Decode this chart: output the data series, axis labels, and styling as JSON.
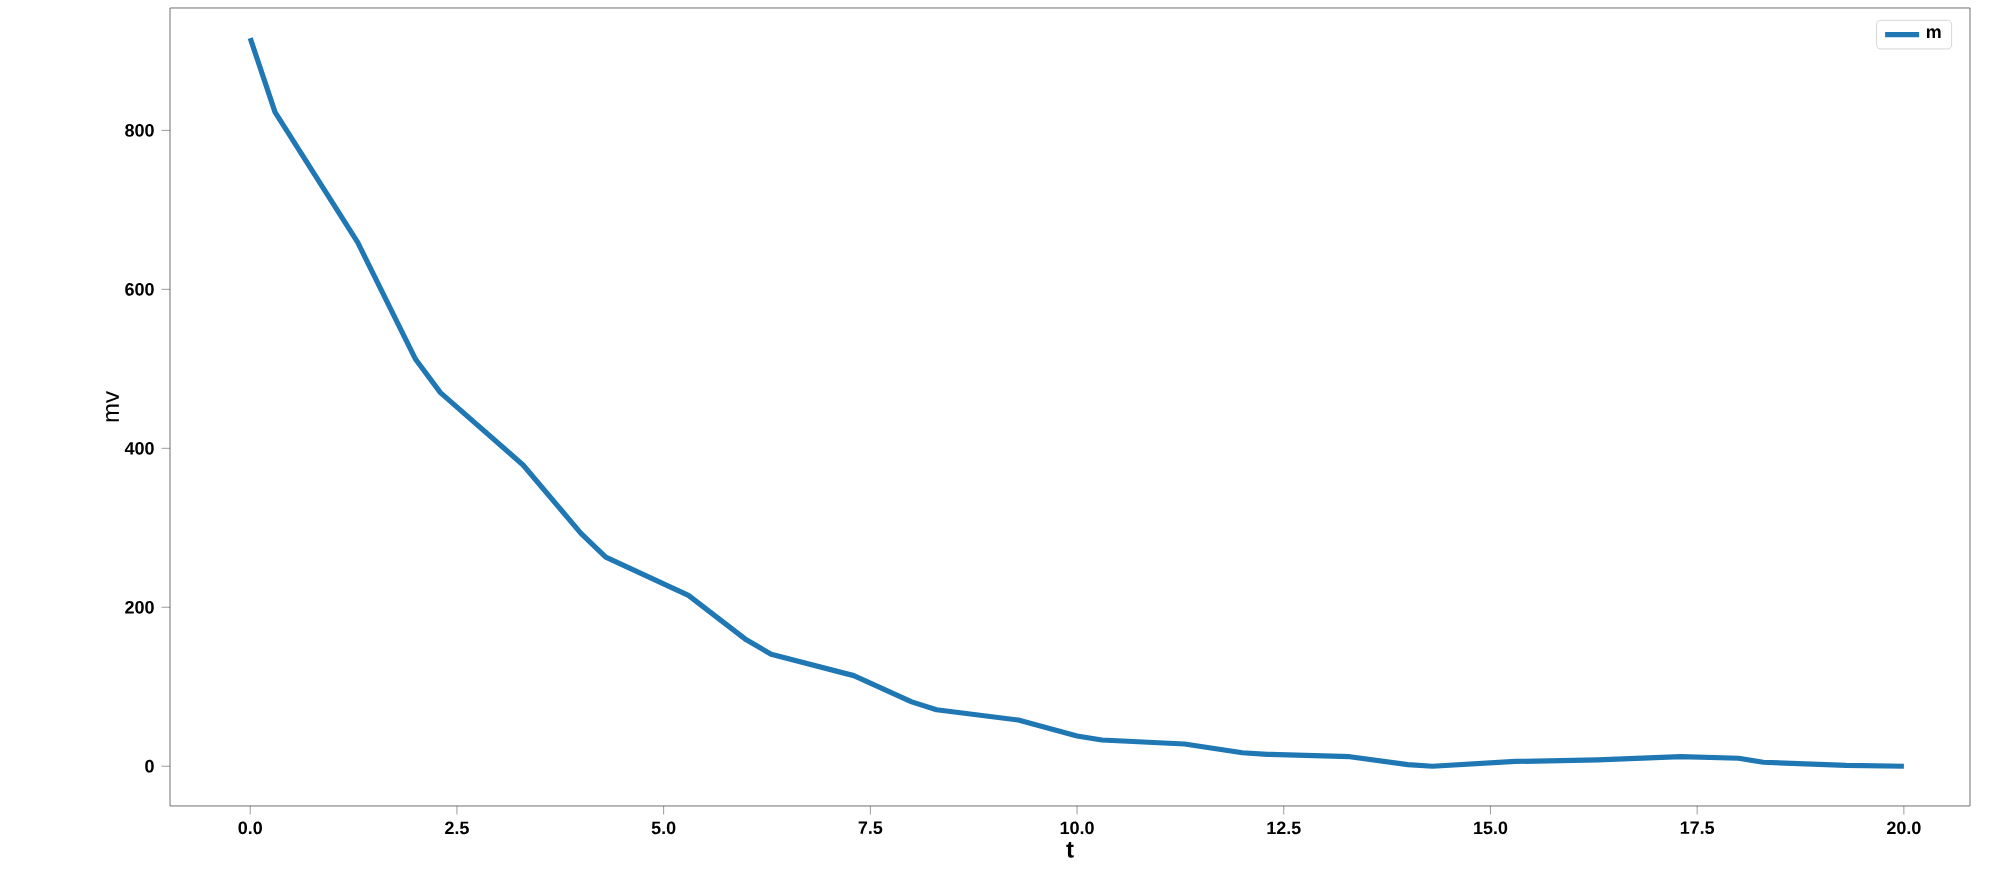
{
  "chart_data": {
    "type": "line",
    "xlabel": "t",
    "ylabel": "mv",
    "x": [
      0,
      0.3,
      1.3,
      2.0,
      2.3,
      3.3,
      4.0,
      4.3,
      5.3,
      6.0,
      6.3,
      7.3,
      8.0,
      8.3,
      9.3,
      10.0,
      10.3,
      11.3,
      12.0,
      12.3,
      13.3,
      14.0,
      14.3,
      15.3,
      16.3,
      17.3,
      18.0,
      18.3,
      19.3,
      20.0
    ],
    "series": [
      {
        "name": "m",
        "color": "#1f77b4",
        "values": [
          916,
          823,
          659,
          512,
          470,
          379,
          293,
          263,
          215,
          159,
          141,
          114,
          81,
          71,
          58,
          38,
          33,
          28,
          17,
          15,
          12,
          2,
          0,
          6,
          8,
          12,
          10,
          5,
          1,
          0
        ]
      }
    ],
    "xlim": [
      -0.97,
      20.8
    ],
    "ylim": [
      -50,
      954
    ],
    "xticks": [
      {
        "value": 0,
        "label": "0.0"
      },
      {
        "value": 2.5,
        "label": "2.5"
      },
      {
        "value": 5,
        "label": "5.0"
      },
      {
        "value": 7.5,
        "label": "7.5"
      },
      {
        "value": 10,
        "label": "10.0"
      },
      {
        "value": 12.5,
        "label": "12.5"
      },
      {
        "value": 15,
        "label": "15.0"
      },
      {
        "value": 17.5,
        "label": "17.5"
      },
      {
        "value": 20,
        "label": "20.0"
      }
    ],
    "yticks": [
      0,
      200,
      400,
      600,
      800
    ],
    "legend": "top right",
    "grid": false,
    "marker": "none",
    "line_style": "solid"
  }
}
